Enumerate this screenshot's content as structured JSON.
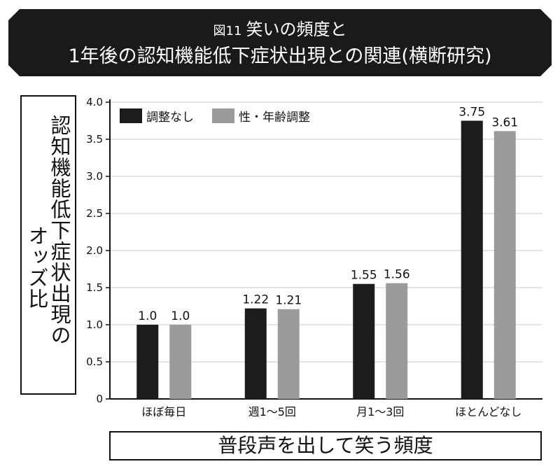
{
  "title": {
    "figure_label": "図11",
    "line1": "笑いの頻度と",
    "line2": "1年後の認知機能低下症状出現との関連(横断研究)"
  },
  "ylabel": {
    "line1": "認知機能低下症状出現の",
    "line2": "オッズ比"
  },
  "xlabel": "普段声を出して笑う頻度",
  "colors": {
    "banner": "#1a1a1a",
    "series1": "#1c1c1c",
    "series2": "#9b9b9b"
  },
  "chart_data": {
    "type": "bar",
    "categories": [
      "ほぼ毎日",
      "週1〜5回",
      "月1〜3回",
      "ほとんどなし"
    ],
    "series": [
      {
        "name": "調整なし",
        "values": [
          1.0,
          1.22,
          1.55,
          3.75
        ],
        "labels": [
          "1.0",
          "1.22",
          "1.55",
          "3.75"
        ]
      },
      {
        "name": "性・年齢調整",
        "values": [
          1.0,
          1.21,
          1.56,
          3.61
        ],
        "labels": [
          "1.0",
          "1.21",
          "1.56",
          "3.61"
        ]
      }
    ],
    "ylim": [
      0,
      4.0
    ],
    "yticks": [
      "0",
      "0.5",
      "1.0",
      "1.5",
      "2.0",
      "2.5",
      "3.0",
      "3.5",
      "4.0"
    ],
    "grid": true,
    "legend": "top-left"
  }
}
